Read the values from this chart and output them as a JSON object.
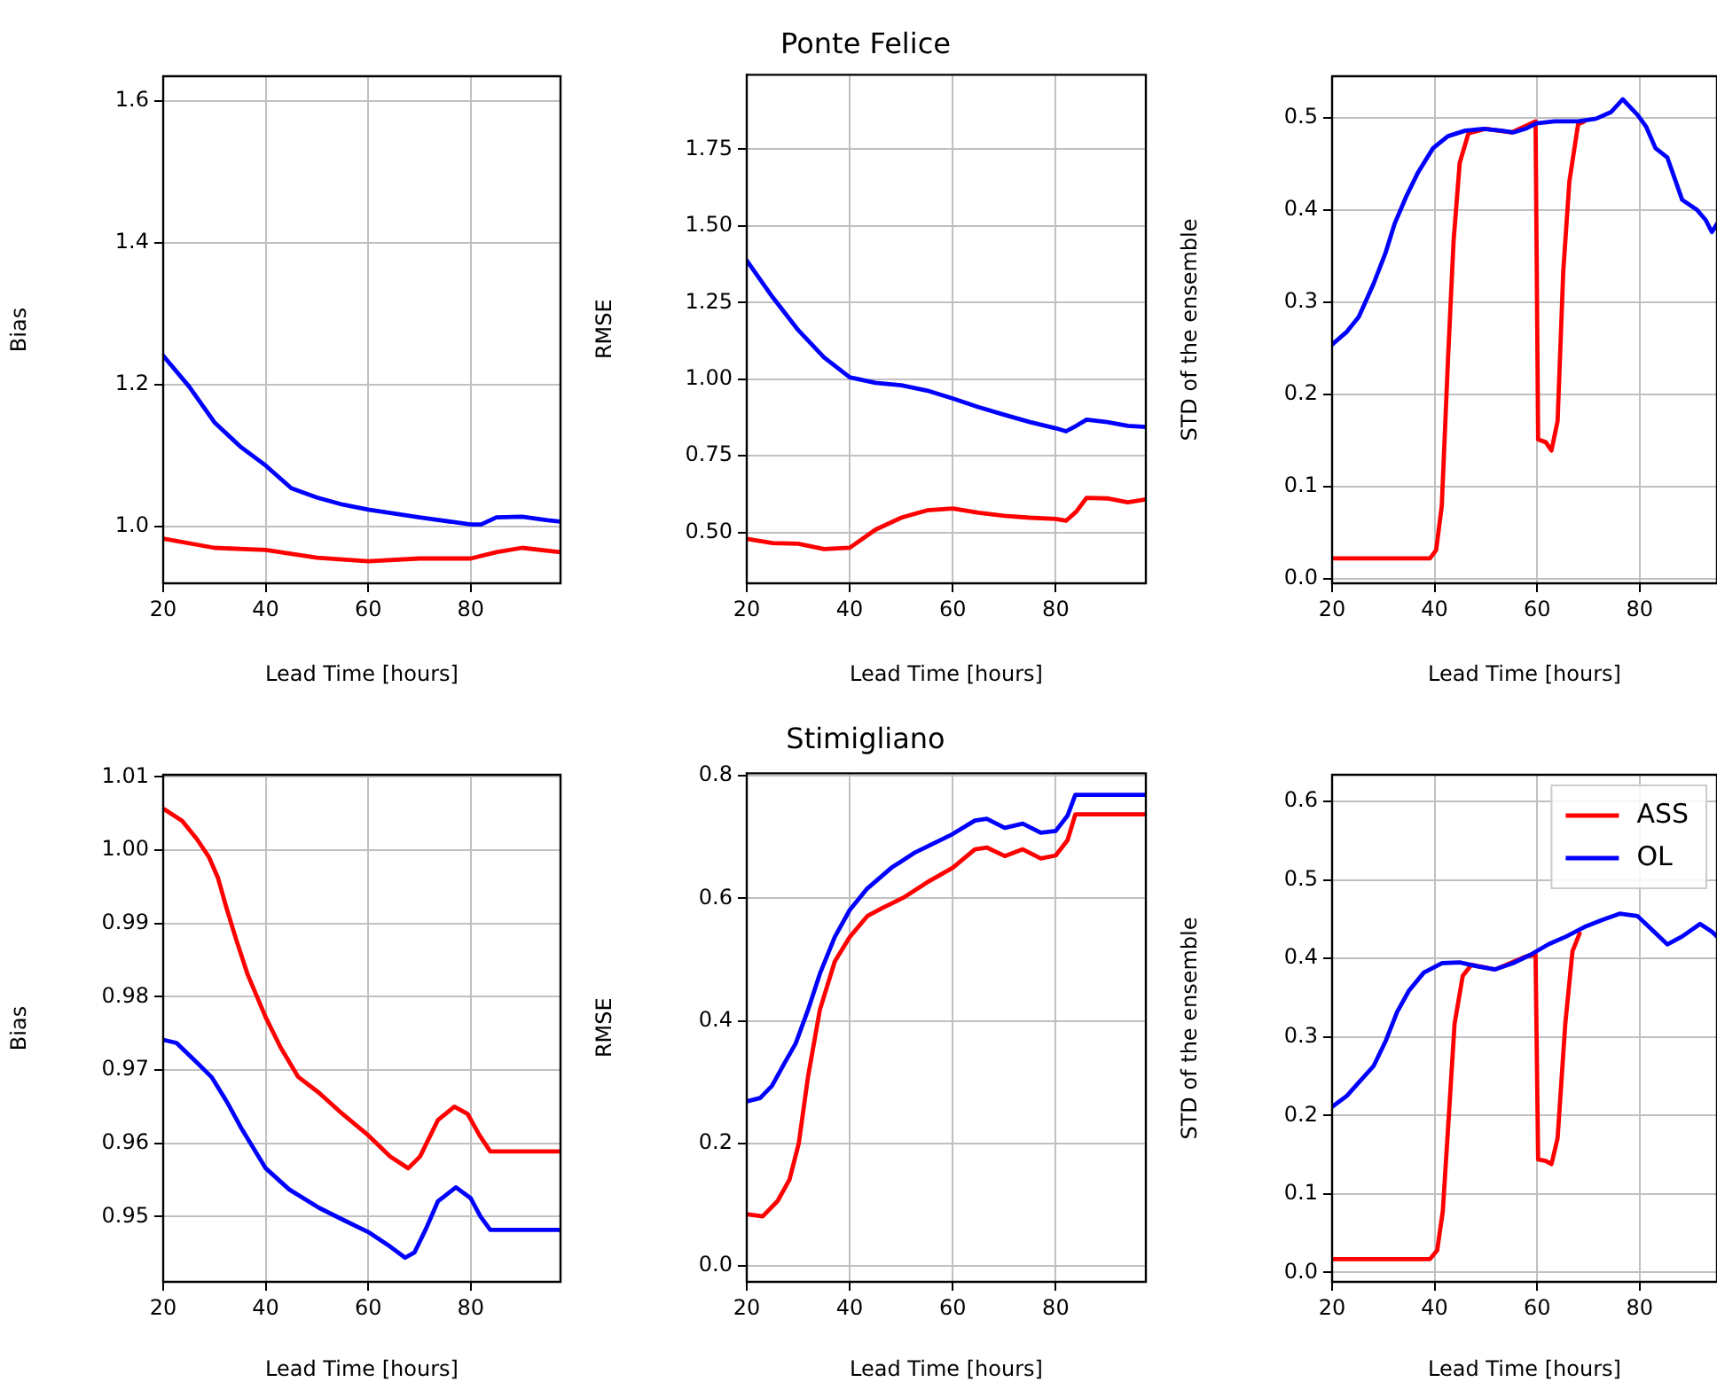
{
  "chart_data": [
    {
      "type": "line",
      "xlabel": "Lead Time [hours]",
      "ylabel": "Bias",
      "xlim": [
        20,
        97.5
      ],
      "xticks": [
        20,
        40,
        60,
        80
      ],
      "ylim": [
        0.92,
        1.635
      ],
      "yticks": [
        {
          "value": 1.0,
          "label": "1.0"
        },
        {
          "value": 1.2,
          "label": "1.2"
        },
        {
          "value": 1.4,
          "label": "1.4"
        },
        {
          "value": 1.6,
          "label": "1.6"
        }
      ],
      "grid": true,
      "series": [
        {
          "color": "#ff0000",
          "x": [
            20,
            30,
            40,
            50,
            60,
            70,
            80,
            85,
            90,
            97.5
          ],
          "values": [
            0.983,
            0.97,
            0.967,
            0.956,
            0.951,
            0.955,
            0.955,
            0.964,
            0.97,
            0.964
          ]
        },
        {
          "color": "#0000ff",
          "x": [
            20,
            25,
            30,
            35,
            40,
            45,
            50,
            55,
            60,
            70,
            80,
            82,
            85,
            90,
            95,
            97.5
          ],
          "values": [
            1.241,
            1.198,
            1.147,
            1.113,
            1.086,
            1.054,
            1.041,
            1.031,
            1.024,
            1.013,
            1.003,
            1.003,
            1.013,
            1.014,
            1.009,
            1.007
          ]
        }
      ]
    },
    {
      "type": "line",
      "title": "Ponte Felice",
      "xlabel": "Lead Time [hours]",
      "ylabel": "RMSE",
      "xlim": [
        20,
        97.5
      ],
      "xticks": [
        20,
        40,
        60,
        80
      ],
      "ylim": [
        0.334,
        1.993
      ],
      "yticks": [
        {
          "value": 0.5,
          "label": "0.50"
        },
        {
          "value": 0.75,
          "label": "0.75"
        },
        {
          "value": 1.0,
          "label": "1.00"
        },
        {
          "value": 1.25,
          "label": "1.25"
        },
        {
          "value": 1.5,
          "label": "1.50"
        },
        {
          "value": 1.75,
          "label": "1.75"
        }
      ],
      "grid": true,
      "series": [
        {
          "color": "#ff0000",
          "x": [
            20,
            25,
            30,
            35,
            40,
            45,
            50,
            55,
            60,
            65,
            70,
            75,
            80,
            82,
            84,
            86,
            90,
            94,
            97.5
          ],
          "values": [
            0.479,
            0.465,
            0.463,
            0.446,
            0.45,
            0.509,
            0.548,
            0.572,
            0.578,
            0.564,
            0.554,
            0.548,
            0.544,
            0.538,
            0.568,
            0.613,
            0.611,
            0.598,
            0.608
          ]
        },
        {
          "color": "#0000ff",
          "x": [
            20,
            25,
            30,
            35,
            40,
            45,
            50,
            55,
            60,
            65,
            70,
            75,
            80,
            82,
            84,
            86,
            90,
            94,
            97.5
          ],
          "values": [
            1.387,
            1.268,
            1.16,
            1.071,
            1.006,
            0.988,
            0.98,
            0.963,
            0.937,
            0.909,
            0.884,
            0.86,
            0.84,
            0.83,
            0.848,
            0.868,
            0.86,
            0.848,
            0.844
          ]
        }
      ]
    },
    {
      "type": "line",
      "xlabel": "Lead Time [hours]",
      "ylabel": "STD of the ensemble",
      "xlim": [
        20,
        95.1
      ],
      "xticks": [
        20,
        40,
        60,
        80
      ],
      "ylim": [
        -0.005,
        0.545
      ],
      "yticks": [
        {
          "value": 0,
          "label": "0.0"
        },
        0.1,
        0.2,
        0.3,
        0.4,
        0.5
      ],
      "grid": true,
      "series": [
        {
          "color": "#ff0000",
          "x": [
            20,
            39.1,
            40.3,
            41.4,
            42.6,
            43.7,
            44.9,
            46.6,
            50,
            55,
            59.7,
            60.2,
            61.7,
            62.8,
            64.0,
            65.1,
            66.3,
            68.0,
            69.2
          ],
          "values": [
            0.022,
            0.022,
            0.031,
            0.079,
            0.236,
            0.366,
            0.451,
            0.483,
            0.488,
            0.484,
            0.496,
            0.151,
            0.148,
            0.139,
            0.171,
            0.333,
            0.431,
            0.493,
            0.496
          ]
        },
        {
          "color": "#0000ff",
          "x": [
            20,
            22.9,
            25.2,
            28.1,
            30.4,
            32.2,
            34.5,
            36.8,
            39.7,
            42.6,
            46.0,
            49.5,
            53.0,
            55.3,
            57.7,
            59.9,
            63.4,
            68.0,
            71.5,
            74.4,
            76.7,
            79.6,
            81.3,
            83.1,
            85.4,
            88.3,
            91.2,
            92.9,
            94.1,
            95.1
          ],
          "values": [
            0.254,
            0.268,
            0.284,
            0.32,
            0.353,
            0.385,
            0.415,
            0.441,
            0.467,
            0.48,
            0.486,
            0.488,
            0.486,
            0.484,
            0.488,
            0.494,
            0.496,
            0.496,
            0.499,
            0.506,
            0.52,
            0.503,
            0.49,
            0.467,
            0.457,
            0.411,
            0.4,
            0.389,
            0.376,
            0.385
          ]
        }
      ]
    },
    {
      "type": "line",
      "xlabel": "Lead Time [hours]",
      "ylabel": "Bias",
      "xlim": [
        20,
        97.5
      ],
      "xticks": [
        20,
        40,
        60,
        80
      ],
      "ylim": [
        0.9411,
        1.0103
      ],
      "yticks": [
        {
          "value": 0.95,
          "label": "0.95"
        },
        {
          "value": 0.96,
          "label": "0.96"
        },
        {
          "value": 0.97,
          "label": "0.97"
        },
        {
          "value": 0.98,
          "label": "0.98"
        },
        {
          "value": 0.99,
          "label": "0.99"
        },
        {
          "value": 1.0,
          "label": "1.00"
        },
        {
          "value": 1.01,
          "label": "1.01"
        }
      ],
      "grid": true,
      "series": [
        {
          "color": "#ff0000",
          "x": [
            20.2,
            23.7,
            26.6,
            28.9,
            30.7,
            32.4,
            34.2,
            36.5,
            40,
            42.9,
            46.3,
            50.4,
            55,
            60,
            64.3,
            67.8,
            70.1,
            73.6,
            76.8,
            79.4,
            81.7,
            83.8,
            97.5
          ],
          "values": [
            1.0056,
            1.004,
            1.0015,
            0.9991,
            0.9962,
            0.992,
            0.9879,
            0.983,
            0.9772,
            0.9731,
            0.9691,
            0.9669,
            0.964,
            0.9611,
            0.9582,
            0.9566,
            0.9582,
            0.9632,
            0.965,
            0.964,
            0.9611,
            0.9589,
            0.9589
          ]
        },
        {
          "color": "#0000ff",
          "x": [
            20.2,
            22.6,
            26.6,
            29.5,
            32.4,
            35.3,
            40,
            44.6,
            50.4,
            55,
            60,
            64.3,
            67.2,
            69,
            71.3,
            73.6,
            77.1,
            80,
            81.9,
            83.8,
            97.5
          ],
          "values": [
            0.9741,
            0.9737,
            0.971,
            0.969,
            0.9657,
            0.962,
            0.9566,
            0.9537,
            0.9512,
            0.9496,
            0.9479,
            0.9459,
            0.9444,
            0.9451,
            0.9484,
            0.9521,
            0.954,
            0.9525,
            0.95,
            0.9482,
            0.9482
          ]
        }
      ]
    },
    {
      "type": "line",
      "title": "Stimigliano",
      "xlabel": "Lead Time [hours]",
      "ylabel": "RMSE",
      "xlim": [
        20,
        97.5
      ],
      "xticks": [
        20,
        40,
        60,
        80
      ],
      "ylim": [
        -0.026,
        0.804
      ],
      "yticks": [
        {
          "value": 0,
          "label": "0.0"
        },
        0.2,
        0.4,
        0.6,
        0.8
      ],
      "grid": true,
      "series": [
        {
          "color": "#ff0000",
          "x": [
            20.2,
            23.1,
            26,
            28.3,
            30.1,
            31.9,
            34.2,
            37.1,
            40,
            43.4,
            46.3,
            50.4,
            55,
            60,
            64.3,
            66.6,
            70.1,
            73.6,
            77.1,
            80,
            82.3,
            83.8,
            97.5
          ],
          "values": [
            0.084,
            0.081,
            0.106,
            0.141,
            0.2,
            0.309,
            0.418,
            0.497,
            0.537,
            0.571,
            0.584,
            0.601,
            0.626,
            0.65,
            0.68,
            0.683,
            0.669,
            0.68,
            0.665,
            0.67,
            0.695,
            0.737,
            0.737
          ]
        },
        {
          "color": "#0000ff",
          "x": [
            20.2,
            22.6,
            24.9,
            27.2,
            29.5,
            31.9,
            34.2,
            37.1,
            40,
            43.4,
            48.1,
            52.7,
            60,
            64.3,
            66.6,
            70.1,
            73.6,
            77.1,
            80,
            82.3,
            83.8,
            97.5
          ],
          "values": [
            0.269,
            0.274,
            0.294,
            0.329,
            0.363,
            0.418,
            0.477,
            0.537,
            0.581,
            0.616,
            0.65,
            0.675,
            0.705,
            0.727,
            0.73,
            0.715,
            0.722,
            0.707,
            0.71,
            0.735,
            0.769,
            0.769
          ]
        }
      ]
    },
    {
      "type": "line",
      "xlabel": "Lead Time [hours]",
      "ylabel": "STD of the ensemble",
      "xlim": [
        20,
        95.1
      ],
      "xticks": [
        20,
        40,
        60,
        80
      ],
      "ylim": [
        -0.012,
        0.634
      ],
      "yticks": [
        {
          "value": 0,
          "label": "0.0"
        },
        0.1,
        0.2,
        0.3,
        0.4,
        0.5,
        0.6
      ],
      "grid": true,
      "legend": "top right",
      "series": [
        {
          "name": "ASS",
          "color": "#ff0000",
          "x": [
            20,
            39.1,
            40.5,
            41.6,
            42.8,
            43.9,
            45.5,
            47.2,
            51.8,
            57.6,
            59.7,
            60.2,
            61.7,
            62.8,
            64,
            65.5,
            66.9,
            68.3
          ],
          "values": [
            0.017,
            0.017,
            0.028,
            0.078,
            0.202,
            0.317,
            0.378,
            0.392,
            0.386,
            0.402,
            0.405,
            0.144,
            0.142,
            0.138,
            0.171,
            0.317,
            0.409,
            0.432
          ]
        },
        {
          "name": "OL",
          "color": "#0000ff",
          "x": [
            20,
            22.9,
            25.2,
            28.1,
            30.4,
            32.7,
            35,
            37.9,
            41.4,
            44.9,
            48.4,
            51.8,
            55.3,
            58.8,
            62.2,
            65.7,
            69.2,
            72.7,
            76.1,
            79.6,
            82.5,
            85.4,
            88.3,
            91.8,
            94.1,
            95.1
          ],
          "values": [
            0.211,
            0.225,
            0.242,
            0.263,
            0.294,
            0.332,
            0.359,
            0.382,
            0.394,
            0.395,
            0.39,
            0.386,
            0.394,
            0.405,
            0.418,
            0.428,
            0.44,
            0.449,
            0.457,
            0.454,
            0.436,
            0.418,
            0.428,
            0.444,
            0.434,
            0.428
          ]
        }
      ]
    }
  ]
}
